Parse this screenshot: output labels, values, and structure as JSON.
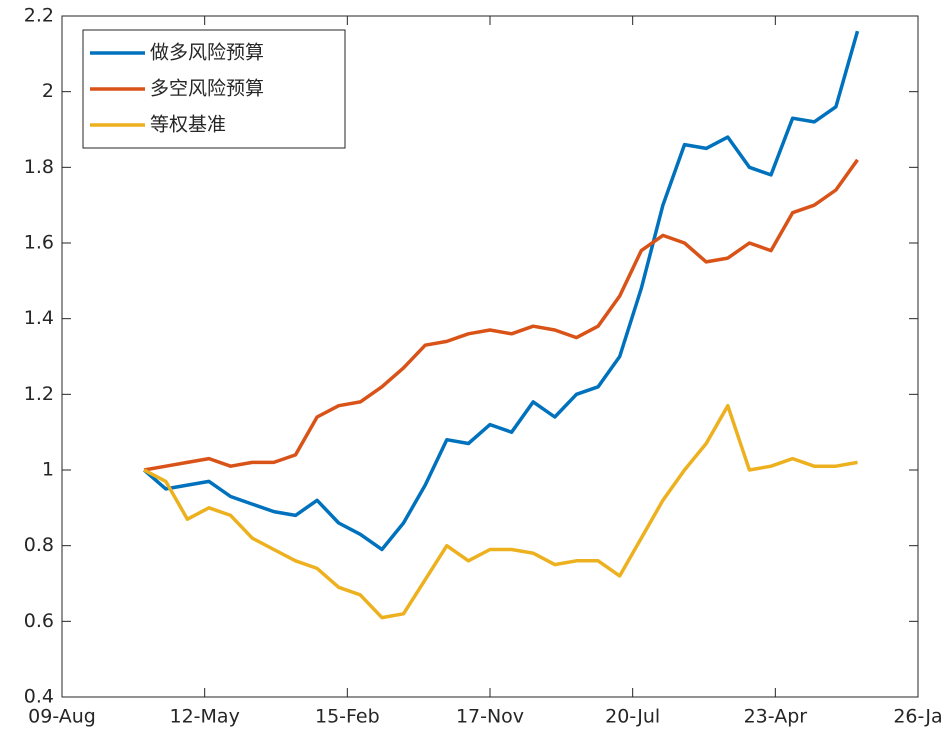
{
  "chart_data": {
    "type": "line",
    "x": [
      19,
      24,
      29,
      34,
      39,
      44,
      49,
      54,
      59,
      64,
      69,
      74,
      79,
      84,
      89,
      94,
      99,
      104,
      109,
      114,
      119,
      124,
      129,
      134,
      139,
      144,
      149,
      154,
      159,
      164,
      169,
      174,
      179,
      184
    ],
    "series": [
      {
        "name": "做多风险预算",
        "color": "#0072BD",
        "values": [
          1.0,
          0.95,
          0.96,
          0.97,
          0.93,
          0.91,
          0.89,
          0.88,
          0.92,
          0.86,
          0.83,
          0.79,
          0.86,
          0.96,
          1.08,
          1.07,
          1.12,
          1.1,
          1.18,
          1.14,
          1.2,
          1.22,
          1.3,
          1.48,
          1.7,
          1.86,
          1.85,
          1.88,
          1.8,
          1.78,
          1.93,
          1.92,
          1.96,
          2.16
        ]
      },
      {
        "name": "多空风险预算",
        "color": "#D95319",
        "values": [
          1.0,
          1.01,
          1.02,
          1.03,
          1.01,
          1.02,
          1.02,
          1.04,
          1.14,
          1.17,
          1.18,
          1.22,
          1.27,
          1.33,
          1.34,
          1.36,
          1.37,
          1.36,
          1.38,
          1.37,
          1.35,
          1.38,
          1.46,
          1.58,
          1.62,
          1.6,
          1.55,
          1.56,
          1.6,
          1.58,
          1.68,
          1.7,
          1.74,
          1.82
        ]
      },
      {
        "name": "等权基准",
        "color": "#EDB120",
        "values": [
          1.0,
          0.97,
          0.87,
          0.9,
          0.88,
          0.82,
          0.79,
          0.76,
          0.74,
          0.69,
          0.67,
          0.61,
          0.62,
          0.71,
          0.8,
          0.76,
          0.79,
          0.79,
          0.78,
          0.75,
          0.76,
          0.76,
          0.72,
          0.82,
          0.92,
          1.0,
          1.07,
          1.17,
          1.0,
          1.01,
          1.03,
          1.01,
          1.01,
          1.02
        ]
      }
    ],
    "xlim": [
      0,
      198
    ],
    "xticks": [
      {
        "value": 0,
        "label": "09-Aug"
      },
      {
        "value": 33,
        "label": "12-May"
      },
      {
        "value": 66,
        "label": "15-Feb"
      },
      {
        "value": 99,
        "label": "17-Nov"
      },
      {
        "value": 132,
        "label": "20-Jul"
      },
      {
        "value": 165,
        "label": "23-Apr"
      },
      {
        "value": 198,
        "label": "26-Ja"
      }
    ],
    "ylim": [
      0.4,
      2.2
    ],
    "yticks": [
      0.4,
      0.6,
      0.8,
      1,
      1.2,
      1.4,
      1.6,
      1.8,
      2,
      2.2
    ],
    "legend": "upper-left"
  }
}
